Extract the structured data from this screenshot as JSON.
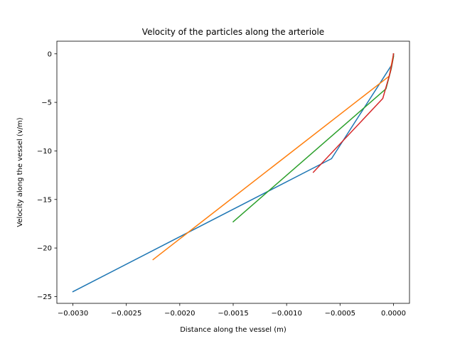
{
  "chart_data": {
    "type": "line",
    "title": "Velocity of the particles along the arteriole",
    "xlabel": "Distance along the vessel (m)",
    "ylabel": "Velocity along the vessel (v/m)",
    "xlim": [
      -0.00315,
      0.00015
    ],
    "ylim": [
      -25.7,
      1.3
    ],
    "xticks": [
      -0.003,
      -0.0025,
      -0.002,
      -0.0015,
      -0.001,
      -0.0005,
      0.0
    ],
    "xtick_labels": [
      "−0.0030",
      "−0.0025",
      "−0.0020",
      "−0.0015",
      "−0.0010",
      "−0.0005",
      "0.0000"
    ],
    "yticks": [
      0,
      -5,
      -10,
      -15,
      -20,
      -25
    ],
    "ytick_labels": [
      "0",
      "−5",
      "−10",
      "−15",
      "−20",
      "−25"
    ],
    "grid": false,
    "series": [
      {
        "color": "#1f77b4",
        "points": [
          [
            -0.003,
            -24.5
          ],
          [
            -0.00058,
            -10.8
          ],
          [
            -2e-05,
            -1.2
          ],
          [
            0.0,
            -0.3
          ],
          [
            0.0,
            0.0
          ]
        ]
      },
      {
        "color": "#ff7f0e",
        "points": [
          [
            -0.00225,
            -21.2
          ],
          [
            -4e-05,
            -2.3
          ],
          [
            -1e-05,
            -0.6
          ],
          [
            0.0,
            -0.1
          ],
          [
            0.0,
            0.0
          ]
        ]
      },
      {
        "color": "#2ca02c",
        "points": [
          [
            -0.0015,
            -17.3
          ],
          [
            -7e-05,
            -3.6
          ],
          [
            -2e-05,
            -1.5
          ],
          [
            0.0,
            -0.3
          ],
          [
            0.0,
            0.0
          ]
        ]
      },
      {
        "color": "#d62728",
        "points": [
          [
            -0.00075,
            -12.2
          ],
          [
            -0.0001,
            -4.6
          ],
          [
            -3e-05,
            -1.9
          ],
          [
            -1e-05,
            -0.8
          ],
          [
            0.0,
            0.0
          ]
        ]
      }
    ]
  }
}
